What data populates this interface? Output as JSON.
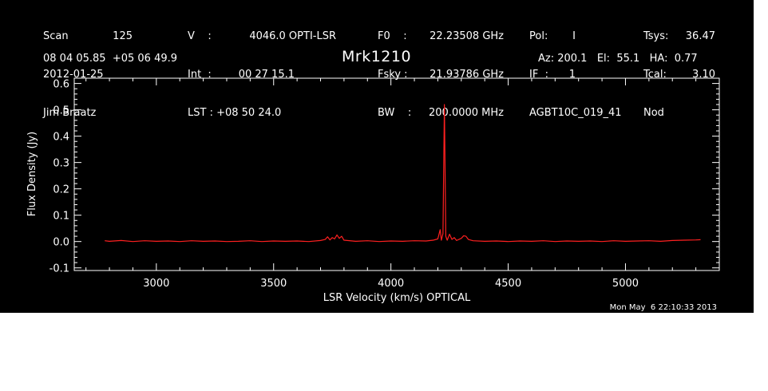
{
  "header": {
    "col1": [
      {
        "label": "Scan",
        "value": "125"
      },
      {
        "label": "2012-01-25",
        "value": ""
      },
      {
        "label": "Jim Braatz",
        "value": ""
      }
    ],
    "col2": [
      {
        "label": "V    :",
        "value": "4046.0 OPTI-LSR"
      },
      {
        "label": "Int  :",
        "value": "00 27 15.1"
      },
      {
        "label": "LST : +08 50 24.0",
        "value": ""
      }
    ],
    "col3": [
      {
        "label": "F0    :",
        "value": "22.23508 GHz"
      },
      {
        "label": "Fsky :",
        "value": "21.93786 GHz"
      },
      {
        "label": "BW    :",
        "value": "200.0000 MHz"
      }
    ],
    "col4": [
      {
        "label": "Pol:",
        "value": "I"
      },
      {
        "label": "IF  :",
        "value": "1"
      },
      {
        "label": "AGBT10C_019_41",
        "value": ""
      }
    ],
    "col5": [
      {
        "label": "Tsys:",
        "value": "36.47"
      },
      {
        "label": "Tcal:",
        "value": "3.10"
      },
      {
        "label": "Nod",
        "value": ""
      }
    ],
    "coords": "08 04 05.85  +05 06 49.9",
    "source": "Mrk1210",
    "pointing": "Az: 200.1   El:  55.1   HA:  0.77",
    "timestamp": "Mon May  6 22:10:33 2013"
  },
  "colors": {
    "background": "#000000",
    "axes": "#ffffff",
    "spectrum": "#ff2020"
  },
  "chart_data": {
    "type": "line",
    "title": "Mrk1210",
    "xlabel": "LSR Velocity (km/s) OPTICAL",
    "ylabel": "Flux Density (Jy)",
    "xlim": [
      2650,
      5400
    ],
    "ylim": [
      -0.11,
      0.62
    ],
    "xticks": [
      3000,
      3500,
      4000,
      4500,
      5000
    ],
    "yticks": [
      -0.1,
      0.0,
      0.1,
      0.2,
      0.3,
      0.4,
      0.5,
      0.6
    ],
    "ytick_labels": [
      "-0.1",
      "0.0",
      "0.1",
      "0.2",
      "0.3",
      "0.4",
      "0.5",
      "0.6"
    ],
    "series": [
      {
        "points": [
          [
            2780,
            0.003
          ],
          [
            2800,
            0.001
          ],
          [
            2850,
            0.004
          ],
          [
            2900,
            0.0
          ],
          [
            2950,
            0.003
          ],
          [
            3000,
            0.001
          ],
          [
            3050,
            0.002
          ],
          [
            3100,
            0.0
          ],
          [
            3150,
            0.003
          ],
          [
            3200,
            0.001
          ],
          [
            3250,
            0.002
          ],
          [
            3300,
            0.0
          ],
          [
            3350,
            0.001
          ],
          [
            3400,
            0.003
          ],
          [
            3450,
            0.0
          ],
          [
            3500,
            0.002
          ],
          [
            3550,
            0.001
          ],
          [
            3600,
            0.002
          ],
          [
            3650,
            0.0
          ],
          [
            3700,
            0.004
          ],
          [
            3720,
            0.008
          ],
          [
            3730,
            0.018
          ],
          [
            3740,
            0.006
          ],
          [
            3750,
            0.015
          ],
          [
            3760,
            0.01
          ],
          [
            3770,
            0.025
          ],
          [
            3780,
            0.012
          ],
          [
            3790,
            0.02
          ],
          [
            3800,
            0.005
          ],
          [
            3850,
            0.001
          ],
          [
            3900,
            0.003
          ],
          [
            3950,
            0.0
          ],
          [
            4000,
            0.002
          ],
          [
            4050,
            0.001
          ],
          [
            4100,
            0.003
          ],
          [
            4150,
            0.002
          ],
          [
            4180,
            0.005
          ],
          [
            4200,
            0.01
          ],
          [
            4210,
            0.045
          ],
          [
            4215,
            0.005
          ],
          [
            4222,
            0.03
          ],
          [
            4228,
            0.52
          ],
          [
            4234,
            0.02
          ],
          [
            4240,
            0.005
          ],
          [
            4250,
            0.028
          ],
          [
            4260,
            0.008
          ],
          [
            4270,
            0.015
          ],
          [
            4280,
            0.004
          ],
          [
            4300,
            0.012
          ],
          [
            4310,
            0.022
          ],
          [
            4320,
            0.02
          ],
          [
            4330,
            0.008
          ],
          [
            4350,
            0.003
          ],
          [
            4400,
            0.001
          ],
          [
            4450,
            0.002
          ],
          [
            4500,
            0.0
          ],
          [
            4550,
            0.002
          ],
          [
            4600,
            0.001
          ],
          [
            4650,
            0.003
          ],
          [
            4700,
            0.0
          ],
          [
            4750,
            0.002
          ],
          [
            4800,
            0.001
          ],
          [
            4850,
            0.002
          ],
          [
            4900,
            0.0
          ],
          [
            4950,
            0.003
          ],
          [
            5000,
            0.001
          ],
          [
            5050,
            0.002
          ],
          [
            5100,
            0.003
          ],
          [
            5150,
            0.001
          ],
          [
            5200,
            0.004
          ],
          [
            5250,
            0.005
          ],
          [
            5300,
            0.006
          ],
          [
            5320,
            0.007
          ]
        ]
      }
    ]
  }
}
